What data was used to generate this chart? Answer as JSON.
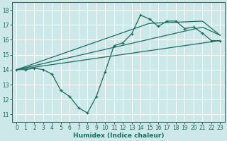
{
  "title": "",
  "xlabel": "Humidex (Indice chaleur)",
  "xlim": [
    -0.5,
    23.5
  ],
  "ylim": [
    10.5,
    18.5
  ],
  "xticks": [
    0,
    1,
    2,
    3,
    4,
    5,
    6,
    7,
    8,
    9,
    10,
    11,
    12,
    13,
    14,
    15,
    16,
    17,
    18,
    19,
    20,
    21,
    22,
    23
  ],
  "yticks": [
    11,
    12,
    13,
    14,
    15,
    16,
    17,
    18
  ],
  "bg_color": "#cce8e8",
  "line_color": "#1a6b60",
  "grid_color": "#ffffff",
  "series": {
    "zigzag": {
      "x": [
        0,
        1,
        2,
        3,
        4,
        5,
        6,
        7,
        8,
        9,
        10,
        11,
        12,
        13,
        14,
        15,
        16,
        17,
        18,
        19,
        20,
        21,
        22,
        23
      ],
      "y": [
        14.0,
        14.0,
        14.1,
        14.0,
        13.7,
        12.6,
        12.2,
        11.45,
        11.1,
        12.2,
        13.85,
        15.6,
        15.8,
        16.4,
        17.65,
        17.4,
        16.9,
        17.25,
        17.25,
        16.75,
        16.85,
        16.45,
        15.95,
        15.95
      ]
    },
    "line1": {
      "x": [
        0,
        23
      ],
      "y": [
        14.0,
        15.95
      ]
    },
    "line2": {
      "x": [
        0,
        21,
        23
      ],
      "y": [
        14.0,
        16.85,
        16.3
      ]
    },
    "line3": {
      "x": [
        0,
        15,
        21,
        23
      ],
      "y": [
        14.0,
        17.1,
        17.25,
        16.3
      ]
    }
  }
}
